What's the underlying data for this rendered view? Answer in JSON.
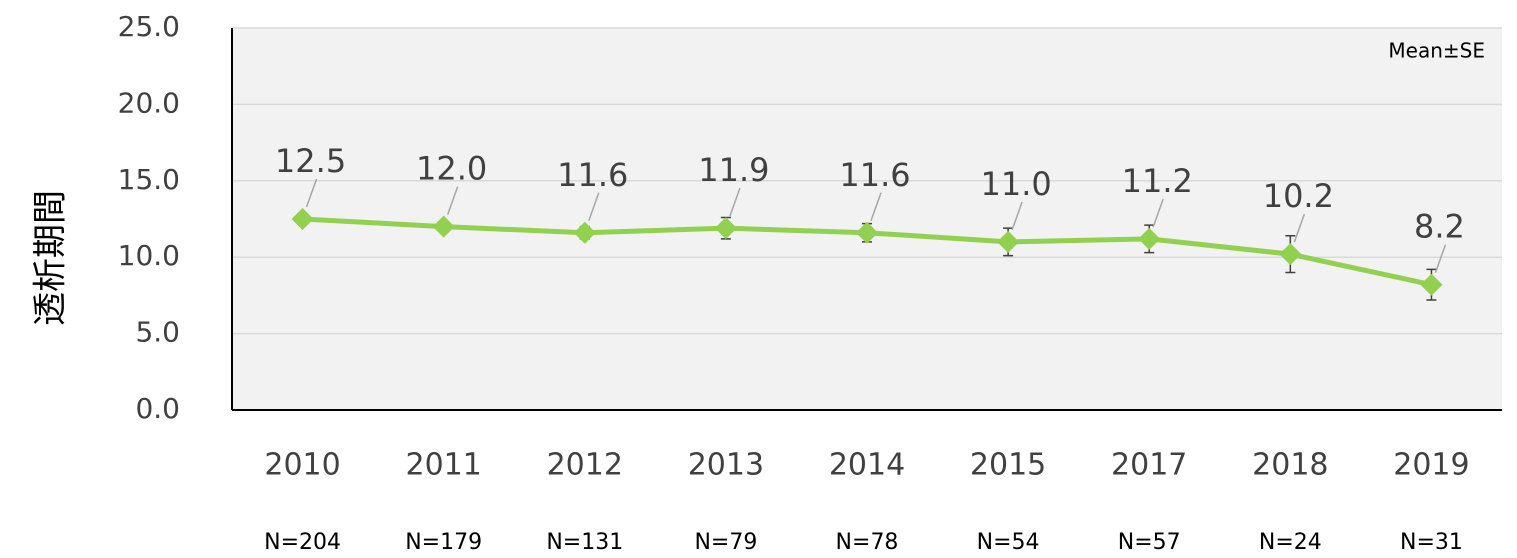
{
  "chart_data": {
    "type": "line",
    "y_label": "透析期間",
    "annotation": "Mean±SE",
    "categories": [
      "2010",
      "2011",
      "2012",
      "2013",
      "2014",
      "2015",
      "2017",
      "2018",
      "2019"
    ],
    "n_labels": [
      "N=204",
      "N=179",
      "N=131",
      "N=79",
      "N=78",
      "N=54",
      "N=57",
      "N=24",
      "N=31"
    ],
    "values": [
      12.5,
      12.0,
      11.6,
      11.9,
      11.6,
      11.0,
      11.2,
      10.2,
      8.2
    ],
    "value_labels": [
      "12.5",
      "12.0",
      "11.6",
      "11.9",
      "11.6",
      "11.0",
      "11.2",
      "10.2",
      "8.2"
    ],
    "errors": [
      0.3,
      0.3,
      0.4,
      0.7,
      0.6,
      0.9,
      0.9,
      1.2,
      1.0
    ],
    "color": "#92d050",
    "ylim": [
      0,
      25
    ],
    "yticks": [
      {
        "value": 0,
        "label": "0.0"
      },
      {
        "value": 5,
        "label": "5.0"
      },
      {
        "value": 10,
        "label": "10.0"
      },
      {
        "value": 15,
        "label": "15.0"
      },
      {
        "value": 20,
        "label": "20.0"
      },
      {
        "value": 25,
        "label": "25.0"
      }
    ],
    "grid": true
  }
}
